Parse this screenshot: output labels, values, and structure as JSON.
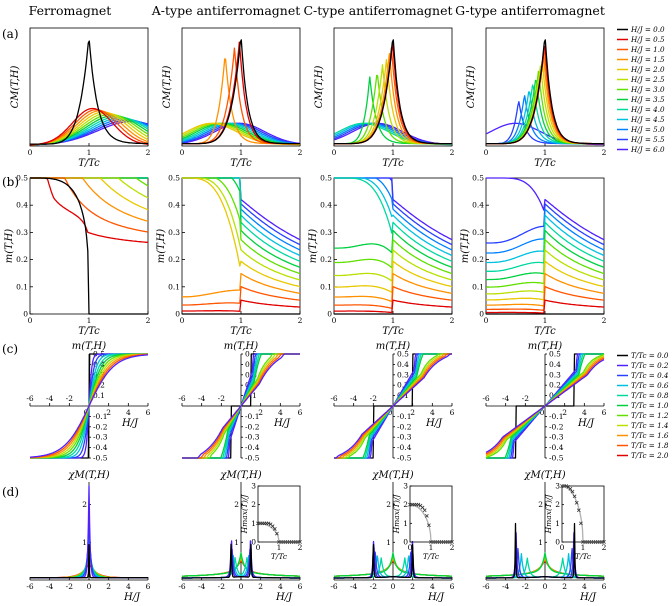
{
  "colors": [
    "#000000",
    "#e00000",
    "#ff5500",
    "#ff9000",
    "#e8c800",
    "#b8e000",
    "#60e000",
    "#00d040",
    "#00d8a0",
    "#00c0e0",
    "#0080ff",
    "#2840ff",
    "#5020ff",
    "#8000e0"
  ],
  "figure": {
    "column_titles": [
      "Ferromagnet",
      "A-type antiferromagnet",
      "C-type antiferromagnet",
      "G-type antiferromagnet"
    ],
    "panel_labels": [
      "(a)",
      "(b)",
      "(c)",
      "(d)"
    ],
    "row_a_legend": [
      "H/J = 0.0",
      "H/J = 0.5",
      "H/J = 1.0",
      "H/J = 1.5",
      "H/J = 2.0",
      "H/J = 2.5",
      "H/J = 3.0",
      "H/J = 3.5",
      "H/J = 4.0",
      "H/J = 4.5",
      "H/J = 5.0",
      "H/J = 5.5",
      "H/J = 6.0"
    ],
    "row_c_legend": [
      "T/Tc = 0.0",
      "T/Tc = 0.2",
      "T/Tc = 0.4",
      "T/Tc = 0.6",
      "T/Tc = 0.8",
      "T/Tc = 1.0",
      "T/Tc = 1.2",
      "T/Tc = 1.4",
      "T/Tc = 1.6",
      "T/Tc = 1.8",
      "T/Tc = 2.0"
    ]
  },
  "chart_data": [
    {
      "type": "line",
      "row": "a",
      "ylabel": "C_M(T,H)",
      "xlabel": "T/T_c",
      "xlim": [
        0,
        2
      ],
      "x_ticks": [
        "0",
        "1",
        "2"
      ],
      "series_by": "H/J",
      "series_count": 13
    },
    {
      "type": "line",
      "row": "b",
      "ylabel": "m(T,H)",
      "xlabel": "T/T_c",
      "xlim": [
        0,
        2
      ],
      "ylim": [
        0,
        0.5
      ],
      "x_ticks": [
        "0",
        "1",
        "2"
      ],
      "y_ticks": [
        "0",
        "0.1",
        "0.2",
        "0.3",
        "0.4",
        "0.5"
      ],
      "series_by": "H/J",
      "series_count": 13
    },
    {
      "type": "line",
      "row": "c",
      "ylabel": "m(T,H)",
      "xlabel": "H/J",
      "xlim": [
        -6,
        6
      ],
      "ylim": [
        -0.5,
        0.5
      ],
      "x_ticks": [
        "-6",
        "-4",
        "-2",
        "0",
        "2",
        "4",
        "6"
      ],
      "y_ticks": [
        "-0.5",
        "-0.4",
        "-0.3",
        "-0.2",
        "-0.1",
        "0.1",
        "0.2",
        "0.3",
        "0.4",
        "0.5"
      ],
      "series_by": "T/Tc",
      "series_count": 11
    },
    {
      "type": "line",
      "row": "d",
      "ylabel": "χ_M(T,H)",
      "xlabel": "H/J",
      "xlim": [
        -6,
        6
      ],
      "ylim": [
        0,
        3
      ],
      "x_ticks": [
        "-6",
        "-4",
        "-2",
        "0",
        "2",
        "4",
        "6"
      ],
      "y_ticks": [
        "0",
        "1",
        "2"
      ],
      "series_by": "T/Tc",
      "series_count": 11
    },
    {
      "type": "scatter",
      "row": "d",
      "inset": true,
      "ylabel": "H_max(T)/J",
      "xlabel": "T/T_c",
      "xlim": [
        0,
        2
      ],
      "ylim": [
        0,
        3
      ],
      "x_ticks": [
        "0",
        "1",
        "2"
      ],
      "y_ticks": [
        "0",
        "1",
        "2",
        "3"
      ],
      "series": [
        {
          "name": "A-type",
          "x": [
            0,
            0.1,
            0.2,
            0.3,
            0.4,
            0.5,
            0.6,
            0.7,
            0.8,
            0.9,
            1.0,
            1.1,
            1.2,
            1.3,
            1.4,
            1.5,
            1.6,
            1.7,
            1.8,
            1.9,
            2.0
          ],
          "values": [
            1,
            1,
            1,
            1,
            1,
            1,
            0.95,
            0.85,
            0.7,
            0.45,
            0,
            0,
            0,
            0,
            0,
            0,
            0,
            0,
            0,
            0,
            0
          ]
        },
        {
          "name": "C-type",
          "x": [
            0,
            0.1,
            0.2,
            0.3,
            0.4,
            0.5,
            0.6,
            0.7,
            0.8,
            0.9,
            1.0,
            1.1,
            1.2,
            1.3,
            1.4,
            1.5,
            1.6,
            1.7,
            1.8,
            1.9,
            2.0
          ],
          "values": [
            2,
            2,
            2,
            2,
            2,
            1.95,
            1.85,
            1.7,
            1.4,
            0.9,
            0,
            0,
            0,
            0,
            0,
            0,
            0,
            0,
            0,
            0,
            0
          ]
        },
        {
          "name": "G-type",
          "x": [
            0,
            0.1,
            0.2,
            0.3,
            0.4,
            0.5,
            0.6,
            0.7,
            0.8,
            0.9,
            1.0,
            1.1,
            1.2,
            1.3,
            1.4,
            1.5,
            1.6,
            1.7,
            1.8,
            1.9,
            2.0
          ],
          "values": [
            3,
            3,
            3,
            2.95,
            2.85,
            2.7,
            2.45,
            2.1,
            1.7,
            1.0,
            0,
            0,
            0,
            0,
            0,
            0,
            0,
            0,
            0,
            0,
            0
          ]
        }
      ]
    }
  ]
}
